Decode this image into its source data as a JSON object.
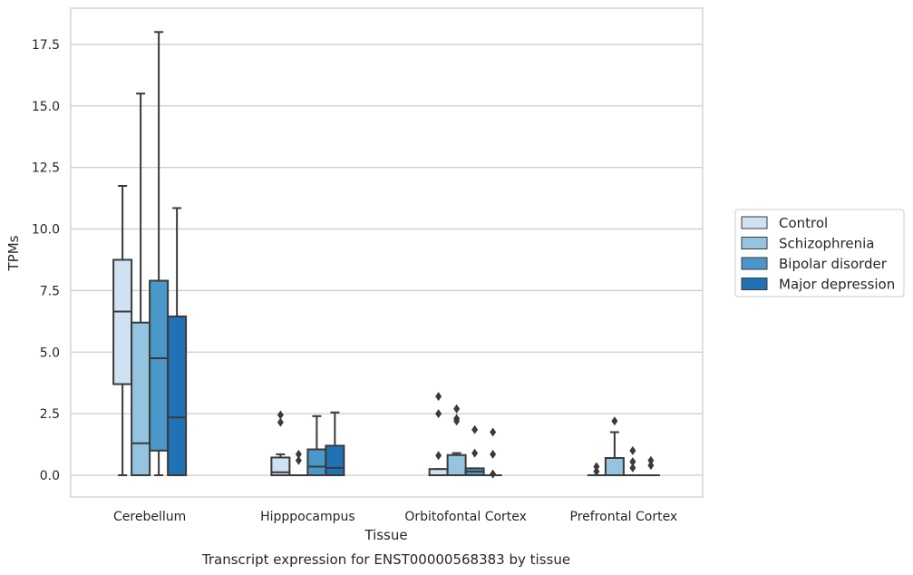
{
  "chart_data": {
    "type": "box",
    "title": "",
    "caption": "Transcript expression for ENST00000568383 by tissue",
    "xlabel": "Tissue",
    "ylabel": "TPMs",
    "ylim": [
      -0.9,
      19.0
    ],
    "yticks": [
      0.0,
      2.5,
      5.0,
      7.5,
      10.0,
      12.5,
      15.0,
      17.5
    ],
    "ytick_labels": [
      "0.0",
      "2.5",
      "5.0",
      "7.5",
      "10.0",
      "12.5",
      "15.0",
      "17.5"
    ],
    "grid": "horizontal",
    "legend_position": "right",
    "categories": [
      "Cerebellum",
      "Hipppocampus",
      "Orbitofontal Cortex",
      "Prefrontal Cortex"
    ],
    "series": [
      {
        "name": "Control",
        "color": "#d0e1f2",
        "boxes": [
          {
            "whislo": 0.0,
            "q1": 3.7,
            "med": 6.65,
            "q3": 8.75,
            "whishi": 11.75,
            "fliers": []
          },
          {
            "whislo": 0.0,
            "q1": 0.0,
            "med": 0.12,
            "q3": 0.72,
            "whishi": 0.85,
            "fliers": [
              2.15,
              2.45
            ]
          },
          {
            "whislo": 0.0,
            "q1": 0.0,
            "med": 0.0,
            "q3": 0.25,
            "whishi": 0.25,
            "fliers": [
              0.8,
              2.5,
              3.2
            ]
          },
          {
            "whislo": 0.0,
            "q1": 0.0,
            "med": 0.0,
            "q3": 0.0,
            "whishi": 0.0,
            "fliers": [
              0.15,
              0.35
            ]
          }
        ]
      },
      {
        "name": "Schizophrenia",
        "color": "#94c4df",
        "boxes": [
          {
            "whislo": 0.0,
            "q1": 0.0,
            "med": 1.3,
            "q3": 6.2,
            "whishi": 15.5,
            "fliers": []
          },
          {
            "whislo": 0.0,
            "q1": 0.0,
            "med": 0.0,
            "q3": 0.0,
            "whishi": 0.0,
            "fliers": [
              0.6,
              0.85
            ]
          },
          {
            "whislo": 0.0,
            "q1": 0.0,
            "med": 0.0,
            "q3": 0.82,
            "whishi": 0.9,
            "fliers": [
              2.2,
              2.3,
              2.7
            ]
          },
          {
            "whislo": 0.0,
            "q1": 0.0,
            "med": 0.0,
            "q3": 0.7,
            "whishi": 1.75,
            "fliers": [
              2.2
            ]
          }
        ]
      },
      {
        "name": "Bipolar disorder",
        "color": "#4a98c9",
        "boxes": [
          {
            "whislo": 0.0,
            "q1": 1.0,
            "med": 4.75,
            "q3": 7.9,
            "whishi": 18.0,
            "fliers": []
          },
          {
            "whislo": 0.0,
            "q1": 0.0,
            "med": 0.35,
            "q3": 1.05,
            "whishi": 2.4,
            "fliers": []
          },
          {
            "whislo": 0.0,
            "q1": 0.0,
            "med": 0.15,
            "q3": 0.28,
            "whishi": 0.28,
            "fliers": [
              0.9,
              1.85
            ]
          },
          {
            "whislo": 0.0,
            "q1": 0.0,
            "med": 0.0,
            "q3": 0.0,
            "whishi": 0.0,
            "fliers": [
              0.3,
              0.55,
              1.0
            ]
          }
        ]
      },
      {
        "name": "Major depression",
        "color": "#2171b5",
        "boxes": [
          {
            "whislo": 0.0,
            "q1": 0.0,
            "med": 2.35,
            "q3": 6.45,
            "whishi": 10.85,
            "fliers": []
          },
          {
            "whislo": 0.0,
            "q1": 0.0,
            "med": 0.3,
            "q3": 1.2,
            "whishi": 2.55,
            "fliers": []
          },
          {
            "whislo": 0.0,
            "q1": 0.0,
            "med": 0.0,
            "q3": 0.0,
            "whishi": 0.0,
            "fliers": [
              0.05,
              0.85,
              1.75
            ]
          },
          {
            "whislo": 0.0,
            "q1": 0.0,
            "med": 0.0,
            "q3": 0.0,
            "whishi": 0.0,
            "fliers": [
              0.4,
              0.6
            ]
          }
        ]
      }
    ]
  }
}
